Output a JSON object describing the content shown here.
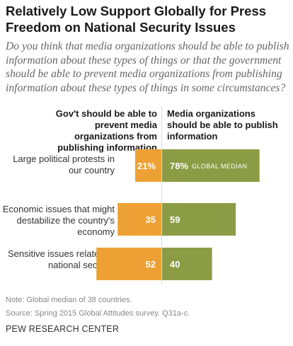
{
  "colors": {
    "gov": "#EDA134",
    "media": "#8B9C45"
  },
  "chart_data": {
    "type": "bar",
    "orientation": "horizontal-diverging",
    "title": "Relatively Low Support Globally for Press Freedom on National Security Issues",
    "subtitle": "Do you think that media organizations should be able to publish information about these types of things or that the government should be able to prevent media organizations from publishing information about these types of things in some circumstances?",
    "categories": [
      "Large political protests in our country",
      "Economic issues that might destabilize the country's economy",
      "Sensitive issues related to national security"
    ],
    "series": [
      {
        "name": "Gov't should be able to prevent media organizations from publishing information",
        "values": [
          21,
          35,
          52
        ],
        "labels": [
          "21%",
          "35",
          "52"
        ]
      },
      {
        "name": "Media organizations should be able to publish information",
        "values": [
          78,
          59,
          40
        ],
        "labels": [
          "78%",
          "59",
          "40"
        ]
      }
    ],
    "annotation": "GLOBAL MEDIAN",
    "legend": "column headers above bars",
    "grid": false
  },
  "notes": {
    "note": "Note: Global median of 38 countries.",
    "source": "Source: Spring 2015 Global Attitudes survey. Q31a-c."
  },
  "footer": "PEW RESEARCH CENTER"
}
